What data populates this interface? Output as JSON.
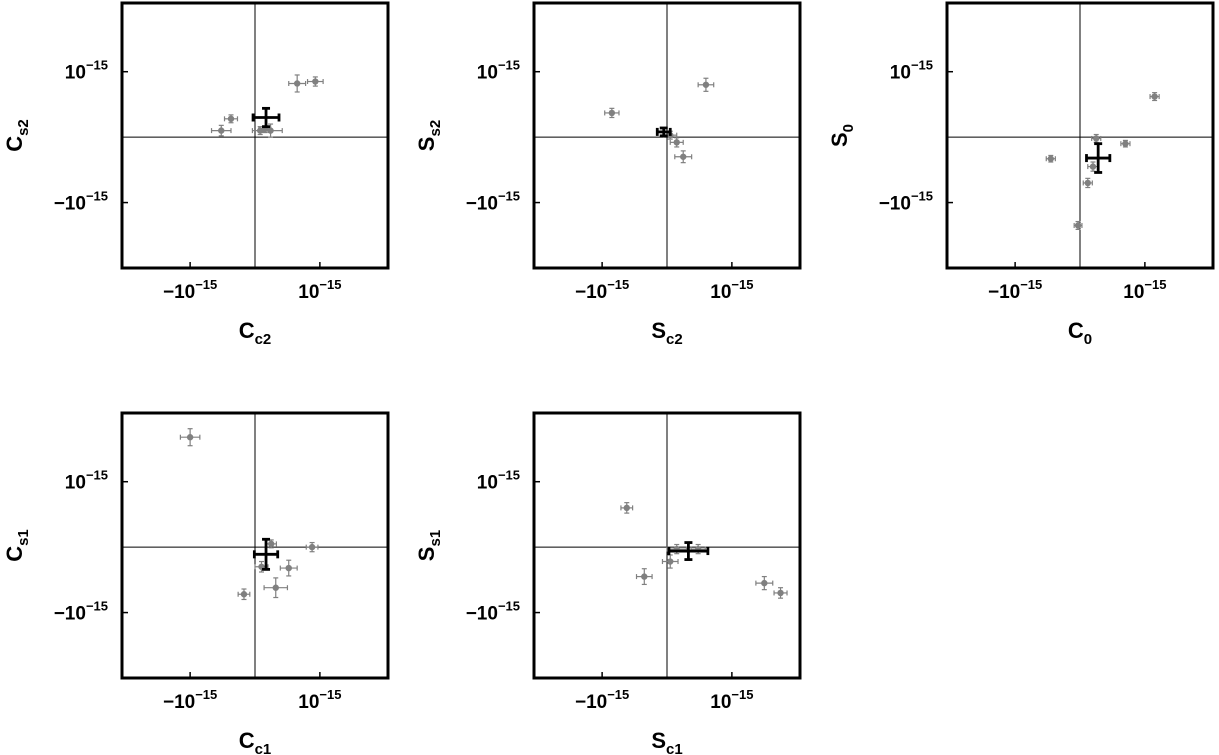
{
  "chart_data": [
    {
      "id": "p1",
      "type": "scatter",
      "xlabel": {
        "base": "C",
        "sub": "c2"
      },
      "ylabel": {
        "base": "C",
        "sub": "s2"
      },
      "xlim": [
        -2.05,
        2.05
      ],
      "ylim": [
        -2.0,
        2.05
      ],
      "xticks": [
        {
          "value": -1,
          "label": "−10",
          "exp": "−15"
        },
        {
          "value": 1,
          "label": "10",
          "exp": "−15"
        }
      ],
      "yticks": [
        {
          "value": 1,
          "label": "10",
          "exp": "−15"
        },
        {
          "value": -1,
          "label": "−10",
          "exp": "−15"
        }
      ],
      "points": [
        {
          "x": -0.37,
          "y": 0.28,
          "xerr": 0.1,
          "yerr": 0.06
        },
        {
          "x": -0.52,
          "y": 0.1,
          "xerr": 0.15,
          "yerr": 0.08
        },
        {
          "x": 0.08,
          "y": 0.1,
          "xerr": 0.12,
          "yerr": 0.06
        },
        {
          "x": 0.15,
          "y": 0.12,
          "xerr": 0.09,
          "yerr": 0.05
        },
        {
          "x": 0.24,
          "y": 0.1,
          "xerr": 0.18,
          "yerr": 0.1
        },
        {
          "x": 0.65,
          "y": 0.82,
          "xerr": 0.13,
          "yerr": 0.13
        },
        {
          "x": 0.93,
          "y": 0.85,
          "xerr": 0.12,
          "yerr": 0.07
        }
      ],
      "mean": {
        "x": 0.17,
        "y": 0.3,
        "xerr": 0.2,
        "yerr": 0.14
      }
    },
    {
      "id": "p2",
      "type": "scatter",
      "xlabel": {
        "base": "S",
        "sub": "c2"
      },
      "ylabel": {
        "base": "S",
        "sub": "s2"
      },
      "xlim": [
        -2.05,
        2.05
      ],
      "ylim": [
        -2.0,
        2.05
      ],
      "xticks": [
        {
          "value": -1,
          "label": "−10",
          "exp": "−15"
        },
        {
          "value": 1,
          "label": "10",
          "exp": "−15"
        }
      ],
      "yticks": [
        {
          "value": 1,
          "label": "10",
          "exp": "−15"
        },
        {
          "value": -1,
          "label": "−10",
          "exp": "−15"
        }
      ],
      "points": [
        {
          "x": -0.85,
          "y": 0.37,
          "xerr": 0.11,
          "yerr": 0.07
        },
        {
          "x": 0.05,
          "y": 0.03,
          "xerr": 0.1,
          "yerr": 0.06
        },
        {
          "x": 0.15,
          "y": -0.08,
          "xerr": 0.1,
          "yerr": 0.07
        },
        {
          "x": 0.25,
          "y": -0.3,
          "xerr": 0.13,
          "yerr": 0.09
        },
        {
          "x": 0.6,
          "y": 0.8,
          "xerr": 0.12,
          "yerr": 0.1
        }
      ],
      "mean": {
        "x": -0.05,
        "y": 0.08,
        "xerr": 0.1,
        "yerr": 0.06
      }
    },
    {
      "id": "p3",
      "type": "scatter",
      "xlabel": {
        "base": "C",
        "sub": "0"
      },
      "ylabel": {
        "base": "S",
        "sub": "0"
      },
      "xlim": [
        -2.05,
        2.05
      ],
      "ylim": [
        -2.0,
        2.05
      ],
      "xticks": [
        {
          "value": -1,
          "label": "−10",
          "exp": "−15"
        },
        {
          "value": 1,
          "label": "10",
          "exp": "−15"
        }
      ],
      "yticks": [
        {
          "value": 1,
          "label": "10",
          "exp": "−15"
        },
        {
          "value": -1,
          "label": "−10",
          "exp": "−15"
        }
      ],
      "points": [
        {
          "x": -0.45,
          "y": -0.33,
          "xerr": 0.07,
          "yerr": 0.05
        },
        {
          "x": -0.03,
          "y": -1.35,
          "xerr": 0.06,
          "yerr": 0.06
        },
        {
          "x": 0.12,
          "y": -0.7,
          "xerr": 0.07,
          "yerr": 0.07
        },
        {
          "x": 0.2,
          "y": -0.45,
          "xerr": 0.08,
          "yerr": 0.07
        },
        {
          "x": 0.25,
          "y": -0.02,
          "xerr": 0.07,
          "yerr": 0.06
        },
        {
          "x": 0.7,
          "y": -0.1,
          "xerr": 0.07,
          "yerr": 0.05
        },
        {
          "x": 1.15,
          "y": 0.62,
          "xerr": 0.07,
          "yerr": 0.06
        }
      ],
      "mean": {
        "x": 0.28,
        "y": -0.32,
        "xerr": 0.18,
        "yerr": 0.22
      }
    },
    {
      "id": "p4",
      "type": "scatter",
      "xlabel": {
        "base": "C",
        "sub": "c1"
      },
      "ylabel": {
        "base": "C",
        "sub": "s1"
      },
      "xlim": [
        -2.05,
        2.05
      ],
      "ylim": [
        -2.0,
        2.05
      ],
      "xticks": [
        {
          "value": -1,
          "label": "−10",
          "exp": "−15"
        },
        {
          "value": 1,
          "label": "10",
          "exp": "−15"
        }
      ],
      "yticks": [
        {
          "value": 1,
          "label": "10",
          "exp": "−15"
        },
        {
          "value": -1,
          "label": "−10",
          "exp": "−15"
        }
      ],
      "points": [
        {
          "x": -1.0,
          "y": 1.68,
          "xerr": 0.15,
          "yerr": 0.13
        },
        {
          "x": -0.17,
          "y": -0.72,
          "xerr": 0.09,
          "yerr": 0.08
        },
        {
          "x": 0.1,
          "y": -0.3,
          "xerr": 0.1,
          "yerr": 0.08
        },
        {
          "x": 0.25,
          "y": 0.05,
          "xerr": 0.08,
          "yerr": 0.06
        },
        {
          "x": 0.32,
          "y": -0.62,
          "xerr": 0.18,
          "yerr": 0.15
        },
        {
          "x": 0.52,
          "y": -0.32,
          "xerr": 0.13,
          "yerr": 0.12
        },
        {
          "x": 0.88,
          "y": 0.0,
          "xerr": 0.09,
          "yerr": 0.07
        }
      ],
      "mean": {
        "x": 0.17,
        "y": -0.11,
        "xerr": 0.18,
        "yerr": 0.23
      }
    },
    {
      "id": "p5",
      "type": "scatter",
      "xlabel": {
        "base": "S",
        "sub": "c1"
      },
      "ylabel": {
        "base": "S",
        "sub": "s1"
      },
      "xlim": [
        -2.05,
        2.05
      ],
      "ylim": [
        -2.0,
        2.05
      ],
      "xticks": [
        {
          "value": -1,
          "label": "−10",
          "exp": "−15"
        },
        {
          "value": 1,
          "label": "10",
          "exp": "−15"
        }
      ],
      "yticks": [
        {
          "value": 1,
          "label": "10",
          "exp": "−15"
        },
        {
          "value": -1,
          "label": "−10",
          "exp": "−15"
        }
      ],
      "points": [
        {
          "x": -0.62,
          "y": 0.6,
          "xerr": 0.09,
          "yerr": 0.08
        },
        {
          "x": -0.35,
          "y": -0.45,
          "xerr": 0.12,
          "yerr": 0.12
        },
        {
          "x": 0.05,
          "y": -0.22,
          "xerr": 0.12,
          "yerr": 0.1
        },
        {
          "x": 0.15,
          "y": -0.03,
          "xerr": 0.15,
          "yerr": 0.07
        },
        {
          "x": 0.48,
          "y": -0.03,
          "xerr": 0.11,
          "yerr": 0.07
        },
        {
          "x": 1.5,
          "y": -0.55,
          "xerr": 0.13,
          "yerr": 0.1
        },
        {
          "x": 1.75,
          "y": -0.7,
          "xerr": 0.1,
          "yerr": 0.08
        }
      ],
      "mean": {
        "x": 0.33,
        "y": -0.06,
        "xerr": 0.3,
        "yerr": 0.13
      }
    }
  ],
  "colors": {
    "points": "#808080",
    "mean": "#000000",
    "frame": "#000000"
  }
}
